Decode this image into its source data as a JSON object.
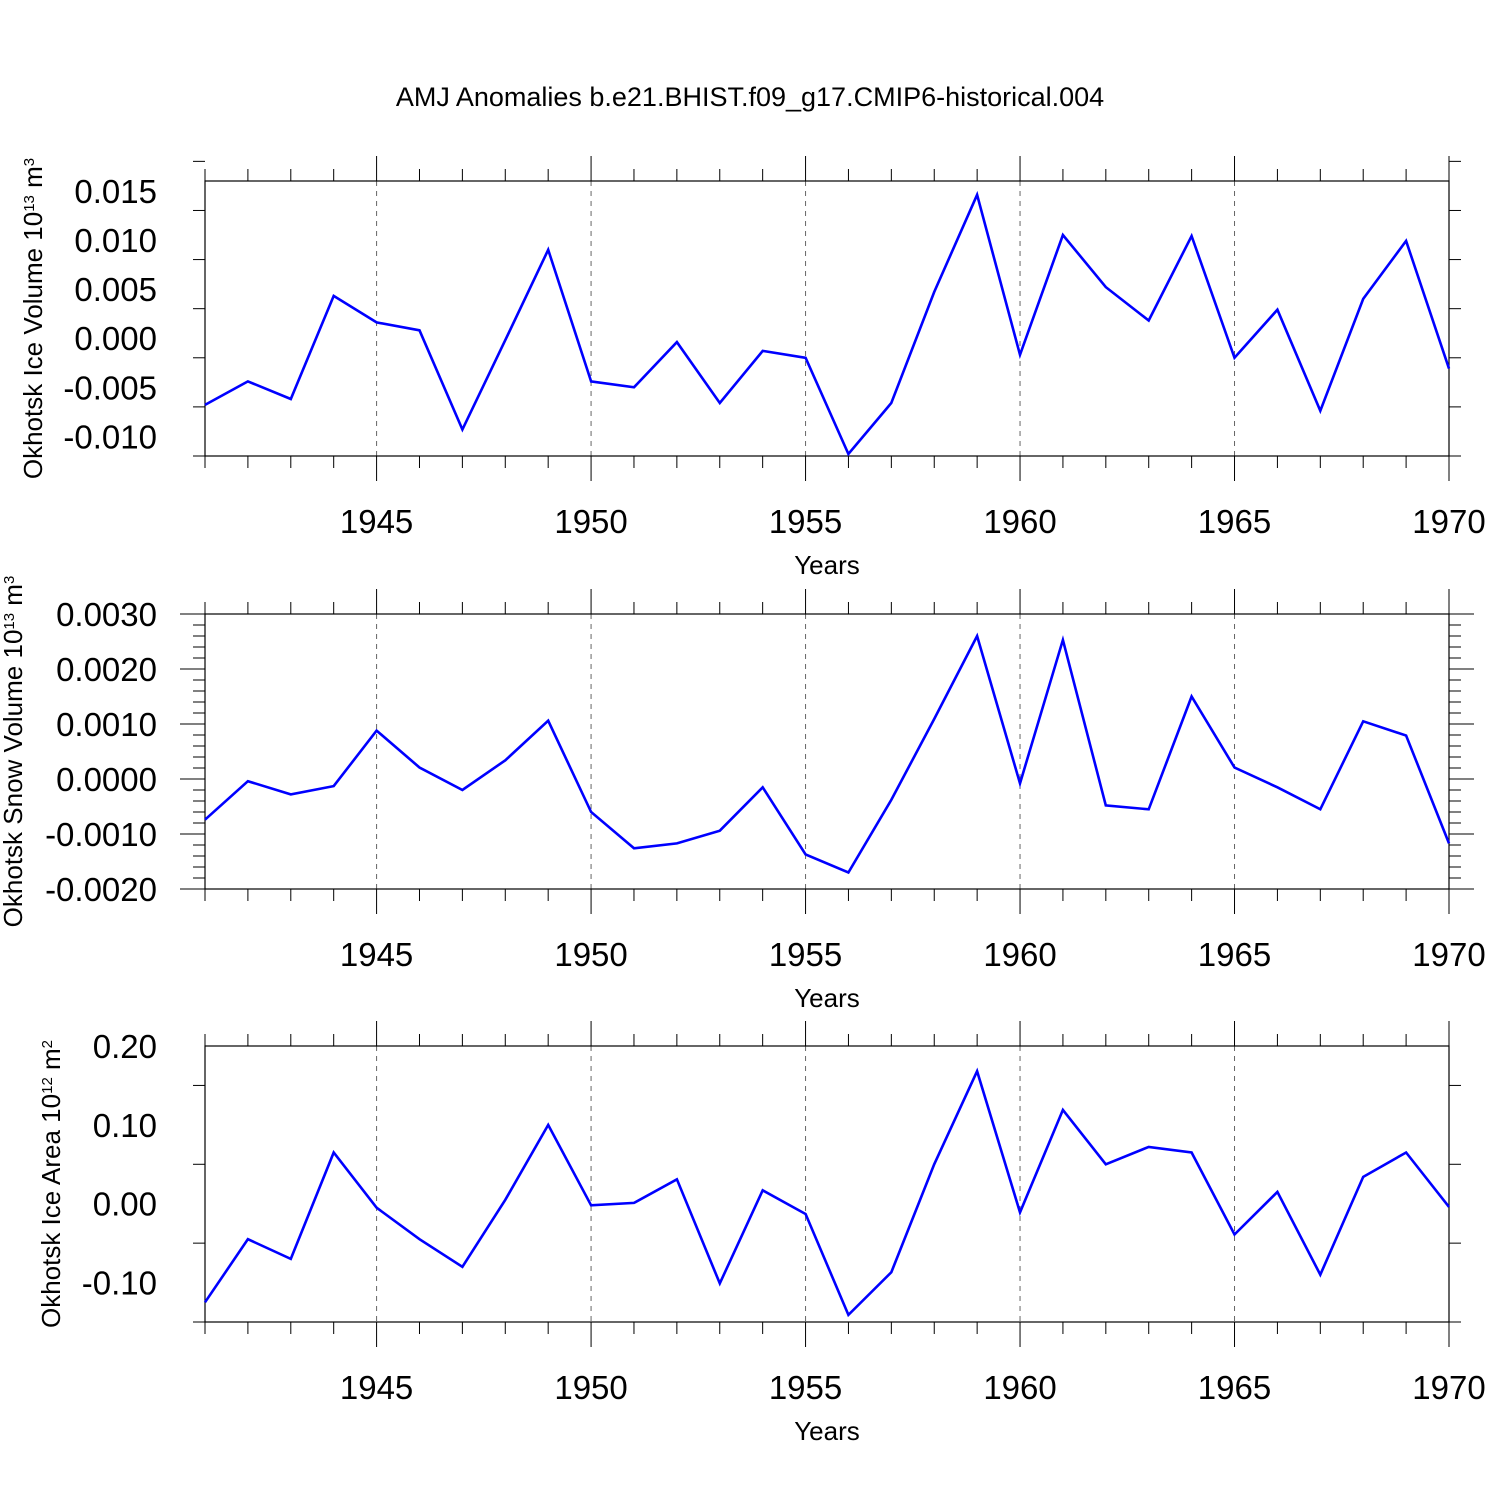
{
  "figure": {
    "title": "AMJ Anomalies b.e21.BHIST.f09_g17.CMIP6-historical.004"
  },
  "chart_data": [
    {
      "type": "line",
      "title": "",
      "xlabel": "Years",
      "ylabel": "Okhotsk Ice Volume 10",
      "ylabel_exp": "13",
      "ylabel_unit": "m",
      "ylabel_unit_exp": "3",
      "xlim": [
        1941,
        1970
      ],
      "ylim": [
        -0.012,
        0.016
      ],
      "xticks": [
        1945,
        1950,
        1955,
        1960,
        1965,
        1970
      ],
      "xtick_labels": [
        "1945",
        "1950",
        "1955",
        "1960",
        "1965",
        "1970"
      ],
      "yticks": [
        -0.01,
        -0.005,
        0.0,
        0.005,
        0.01,
        0.015
      ],
      "ytick_labels": [
        "-0.010",
        "-0.005",
        "0.000",
        "0.005",
        "0.010",
        "0.015"
      ],
      "grid": "x-dashed",
      "color": "#0000ff",
      "series": [
        {
          "name": "Okhotsk Ice Volume",
          "x": [
            1941,
            1942,
            1943,
            1944,
            1945,
            1946,
            1947,
            1948,
            1949,
            1950,
            1951,
            1952,
            1953,
            1954,
            1955,
            1956,
            1957,
            1958,
            1959,
            1960,
            1961,
            1962,
            1963,
            1964,
            1965,
            1966,
            1967,
            1968,
            1969,
            1970
          ],
          "values": [
            -0.0068,
            -0.0044,
            -0.0062,
            0.0043,
            0.0016,
            0.0008,
            -0.0093,
            -0.0002,
            0.009,
            -0.0044,
            -0.005,
            -0.0004,
            -0.0066,
            -0.0013,
            -0.002,
            -0.0118,
            -0.0066,
            0.0047,
            0.0146,
            -0.0017,
            0.0105,
            0.0052,
            0.0018,
            0.0104,
            -0.002,
            0.0029,
            -0.0074,
            0.004,
            0.0099,
            -0.0031
          ]
        }
      ]
    },
    {
      "type": "line",
      "title": "",
      "xlabel": "Years",
      "ylabel": "Okhotsk Snow Volume 10",
      "ylabel_exp": "13",
      "ylabel_unit": "m",
      "ylabel_unit_exp": "3",
      "xlim": [
        1941,
        1970
      ],
      "ylim": [
        -0.002,
        0.003
      ],
      "xticks": [
        1945,
        1950,
        1955,
        1960,
        1965,
        1970
      ],
      "xtick_labels": [
        "1945",
        "1950",
        "1955",
        "1960",
        "1965",
        "1970"
      ],
      "yticks": [
        -0.002,
        -0.001,
        0.0,
        0.001,
        0.002,
        0.003
      ],
      "ytick_labels": [
        "-0.0020",
        "-0.0010",
        "0.0000",
        "0.0010",
        "0.0020",
        "0.0030"
      ],
      "grid": "x-dashed",
      "color": "#0000ff",
      "series": [
        {
          "name": "Okhotsk Snow Volume",
          "x": [
            1941,
            1942,
            1943,
            1944,
            1945,
            1946,
            1947,
            1948,
            1949,
            1950,
            1951,
            1952,
            1953,
            1954,
            1955,
            1956,
            1957,
            1958,
            1959,
            1960,
            1961,
            1962,
            1963,
            1964,
            1965,
            1966,
            1967,
            1968,
            1969,
            1970
          ],
          "values": [
            -0.00074,
            -4e-05,
            -0.00028,
            -0.00013,
            0.00088,
            0.00021,
            -0.0002,
            0.00034,
            0.00106,
            -0.0006,
            -0.00126,
            -0.00117,
            -0.00094,
            -0.00015,
            -0.00137,
            -0.0017,
            -0.00038,
            0.00109,
            0.0026,
            -8e-05,
            0.00253,
            -0.00048,
            -0.00055,
            0.0015,
            0.00021,
            -0.00015,
            -0.00055,
            0.00105,
            0.00079,
            -0.00117
          ]
        }
      ]
    },
    {
      "type": "line",
      "title": "",
      "xlabel": "Years",
      "ylabel": "Okhotsk Ice Area 10",
      "ylabel_exp": "12",
      "ylabel_unit": "m",
      "ylabel_unit_exp": "2",
      "xlim": [
        1941,
        1970
      ],
      "ylim": [
        -0.15,
        0.2
      ],
      "xticks": [
        1945,
        1950,
        1955,
        1960,
        1965,
        1970
      ],
      "xtick_labels": [
        "1945",
        "1950",
        "1955",
        "1960",
        "1965",
        "1970"
      ],
      "yticks": [
        -0.1,
        0.0,
        0.1,
        0.2
      ],
      "ytick_labels": [
        "-0.10",
        "0.00",
        "0.10",
        "0.20"
      ],
      "grid": "x-dashed",
      "color": "#0000ff",
      "series": [
        {
          "name": "Okhotsk Ice Area",
          "x": [
            1941,
            1942,
            1943,
            1944,
            1945,
            1946,
            1947,
            1948,
            1949,
            1950,
            1951,
            1952,
            1953,
            1954,
            1955,
            1956,
            1957,
            1958,
            1959,
            1960,
            1961,
            1962,
            1963,
            1964,
            1965,
            1966,
            1967,
            1968,
            1969,
            1970
          ],
          "values": [
            -0.125,
            -0.045,
            -0.07,
            0.065,
            -0.005,
            -0.045,
            -0.08,
            0.005,
            0.1,
            -0.002,
            0.001,
            0.031,
            -0.101,
            0.017,
            -0.013,
            -0.141,
            -0.087,
            0.05,
            0.168,
            -0.011,
            0.119,
            0.05,
            0.072,
            0.065,
            -0.039,
            0.015,
            -0.09,
            0.034,
            0.065,
            -0.004
          ]
        }
      ]
    }
  ]
}
